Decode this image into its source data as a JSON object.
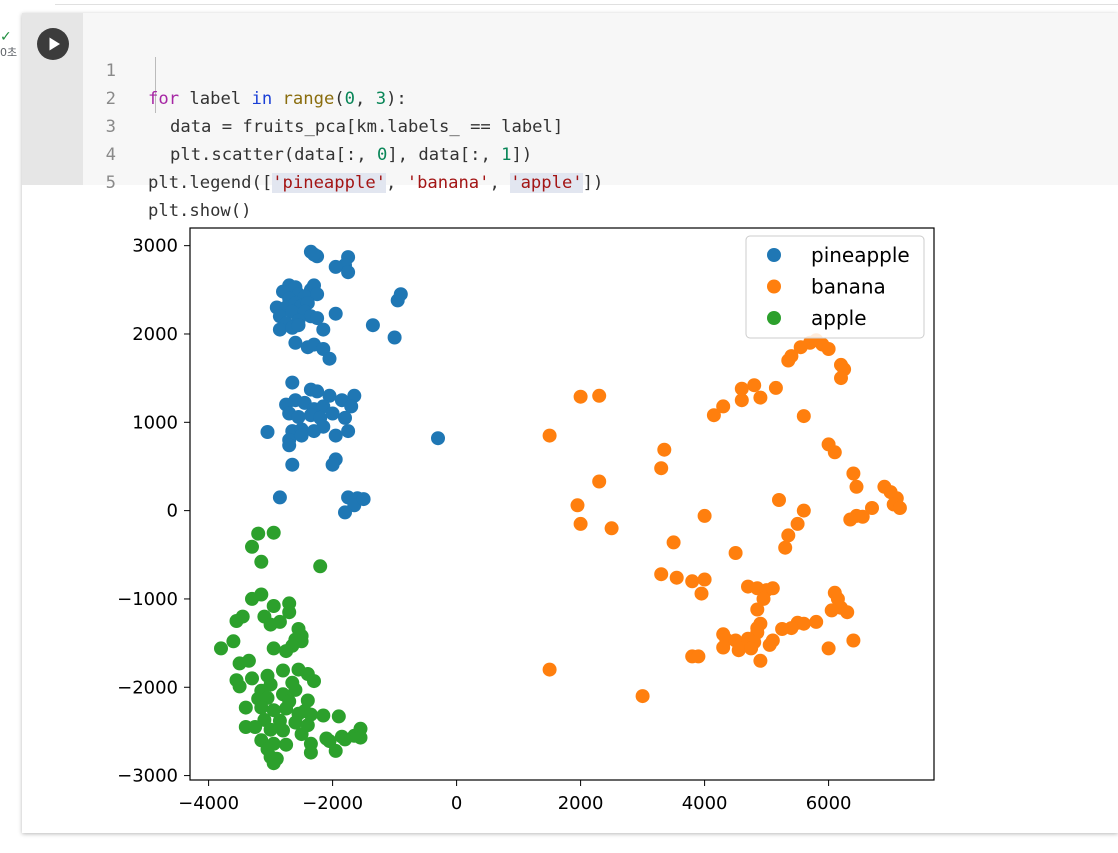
{
  "status": {
    "check": "✓",
    "exec_time": "0초"
  },
  "run_button": {
    "icon": "play-icon"
  },
  "code": {
    "line_numbers": [
      "1",
      "2",
      "3",
      "4",
      "5"
    ],
    "l1": {
      "for": "for",
      "mid": " label ",
      "in": "in",
      "sp": " ",
      "range": "range",
      "p1": "(",
      "n0": "0",
      "comma": ", ",
      "n3": "3",
      "tail": "):"
    },
    "l2": {
      "a": "data = fruits_pca[km.labels_ == label]"
    },
    "l3": {
      "a": "plt.scatter(data[:, ",
      "n0": "0",
      "b": "], data[:, ",
      "n1": "1",
      "c": "])"
    },
    "l4": {
      "a": "plt.legend([",
      "s1": "'pineapple'",
      "c1": ", ",
      "s2": "'banana'",
      "c2": ", ",
      "s3": "'apple'",
      "d": "])"
    },
    "l5": {
      "a": "plt.show()"
    }
  },
  "chart_data": {
    "type": "scatter",
    "xlim": [
      -4300,
      7700
    ],
    "ylim": [
      -3050,
      3200
    ],
    "xticks": [
      -4000,
      -2000,
      0,
      2000,
      4000,
      6000
    ],
    "yticks": [
      3000,
      2000,
      1000,
      0,
      -1000,
      -2000,
      -3000
    ],
    "xtick_labels": [
      "−4000",
      "−2000",
      "0",
      "2000",
      "4000",
      "6000"
    ],
    "ytick_labels": [
      "3000",
      "2000",
      "1000",
      "0",
      "−1000",
      "−2000",
      "−3000"
    ],
    "grid": false,
    "legend_position": "upper right",
    "series": [
      {
        "name": "pineapple",
        "color": "#1f77b4",
        "points": [
          [
            -2350,
            2930
          ],
          [
            -2250,
            2880
          ],
          [
            -2300,
            2900
          ],
          [
            -1750,
            2870
          ],
          [
            -1800,
            2780
          ],
          [
            -1950,
            2760
          ],
          [
            -1750,
            2700
          ],
          [
            -2700,
            2550
          ],
          [
            -2600,
            2530
          ],
          [
            -2350,
            2500
          ],
          [
            -2300,
            2550
          ],
          [
            -2800,
            2480
          ],
          [
            -2550,
            2450
          ],
          [
            -2700,
            2400
          ],
          [
            -2450,
            2420
          ],
          [
            -2250,
            2450
          ],
          [
            -2900,
            2300
          ],
          [
            -2750,
            2300
          ],
          [
            -2600,
            2350
          ],
          [
            -2500,
            2320
          ],
          [
            -2400,
            2350
          ],
          [
            -2850,
            2200
          ],
          [
            -2650,
            2250
          ],
          [
            -2450,
            2250
          ],
          [
            -2350,
            2200
          ],
          [
            -2750,
            2120
          ],
          [
            -2550,
            2150
          ],
          [
            -2250,
            2180
          ],
          [
            -2850,
            2050
          ],
          [
            -2650,
            2070
          ],
          [
            -2550,
            2100
          ],
          [
            -2150,
            2050
          ],
          [
            -1950,
            2230
          ],
          [
            -1350,
            2100
          ],
          [
            -950,
            2380
          ],
          [
            -900,
            2450
          ],
          [
            -1000,
            1960
          ],
          [
            -2600,
            1900
          ],
          [
            -2400,
            1850
          ],
          [
            -2300,
            1880
          ],
          [
            -2150,
            1830
          ],
          [
            -2050,
            1720
          ],
          [
            -2650,
            1450
          ],
          [
            -2350,
            1370
          ],
          [
            -2250,
            1350
          ],
          [
            -2050,
            1300
          ],
          [
            -1650,
            1300
          ],
          [
            -2600,
            1250
          ],
          [
            -2450,
            1220
          ],
          [
            -2750,
            1200
          ],
          [
            -2300,
            1150
          ],
          [
            -2150,
            1180
          ],
          [
            -1850,
            1250
          ],
          [
            -1700,
            1180
          ],
          [
            -2700,
            1100
          ],
          [
            -2550,
            1060
          ],
          [
            -2350,
            1080
          ],
          [
            -2200,
            1050
          ],
          [
            -2000,
            1100
          ],
          [
            -2150,
            950
          ],
          [
            -1800,
            1050
          ],
          [
            -1750,
            900
          ],
          [
            -2650,
            900
          ],
          [
            -2500,
            920
          ],
          [
            -2300,
            900
          ],
          [
            -3050,
            890
          ],
          [
            -2700,
            800
          ],
          [
            -2500,
            850
          ],
          [
            -1950,
            850
          ],
          [
            -2700,
            740
          ],
          [
            -1950,
            580
          ],
          [
            -2000,
            520
          ],
          [
            -2650,
            520
          ],
          [
            -300,
            820
          ],
          [
            -1750,
            150
          ],
          [
            -1600,
            140
          ],
          [
            -1650,
            60
          ],
          [
            -1800,
            -20
          ],
          [
            -2850,
            150
          ],
          [
            -1500,
            130
          ]
        ]
      },
      {
        "name": "banana",
        "color": "#ff7f0e",
        "points": [
          [
            5700,
            1900
          ],
          [
            5800,
            1930
          ],
          [
            5900,
            1880
          ],
          [
            5550,
            1850
          ],
          [
            6000,
            1830
          ],
          [
            5400,
            1750
          ],
          [
            5350,
            1700
          ],
          [
            6200,
            1650
          ],
          [
            6250,
            1600
          ],
          [
            6200,
            1500
          ],
          [
            4800,
            1420
          ],
          [
            4600,
            1380
          ],
          [
            5150,
            1390
          ],
          [
            4900,
            1280
          ],
          [
            4600,
            1250
          ],
          [
            4300,
            1180
          ],
          [
            4150,
            1080
          ],
          [
            5600,
            1070
          ],
          [
            2000,
            1290
          ],
          [
            2300,
            1300
          ],
          [
            1500,
            850
          ],
          [
            6000,
            750
          ],
          [
            6100,
            660
          ],
          [
            3350,
            690
          ],
          [
            3300,
            480
          ],
          [
            2300,
            330
          ],
          [
            6400,
            420
          ],
          [
            6450,
            270
          ],
          [
            6900,
            270
          ],
          [
            7000,
            210
          ],
          [
            7100,
            140
          ],
          [
            7050,
            70
          ],
          [
            7150,
            30
          ],
          [
            6700,
            30
          ],
          [
            5200,
            120
          ],
          [
            5600,
            0
          ],
          [
            5500,
            -150
          ],
          [
            4000,
            -60
          ],
          [
            6450,
            -60
          ],
          [
            6550,
            -70
          ],
          [
            6350,
            -100
          ],
          [
            1950,
            60
          ],
          [
            2000,
            -150
          ],
          [
            2500,
            -200
          ],
          [
            5350,
            -280
          ],
          [
            5300,
            -420
          ],
          [
            3500,
            -360
          ],
          [
            4500,
            -480
          ],
          [
            3300,
            -720
          ],
          [
            3550,
            -760
          ],
          [
            3800,
            -800
          ],
          [
            4000,
            -780
          ],
          [
            3950,
            -940
          ],
          [
            4700,
            -860
          ],
          [
            4850,
            -880
          ],
          [
            5000,
            -900
          ],
          [
            5100,
            -880
          ],
          [
            4950,
            -1000
          ],
          [
            4850,
            -1120
          ],
          [
            6100,
            -930
          ],
          [
            6150,
            -1000
          ],
          [
            6200,
            -1100
          ],
          [
            6050,
            -1130
          ],
          [
            6300,
            -1150
          ],
          [
            5500,
            -1270
          ],
          [
            5600,
            -1280
          ],
          [
            5800,
            -1260
          ],
          [
            5400,
            -1330
          ],
          [
            5250,
            -1340
          ],
          [
            4900,
            -1280
          ],
          [
            4850,
            -1330
          ],
          [
            4850,
            -1380
          ],
          [
            4300,
            -1400
          ],
          [
            4350,
            -1460
          ],
          [
            4500,
            -1470
          ],
          [
            4600,
            -1510
          ],
          [
            4700,
            -1450
          ],
          [
            4800,
            -1490
          ],
          [
            4300,
            -1550
          ],
          [
            4550,
            -1580
          ],
          [
            4750,
            -1560
          ],
          [
            5100,
            -1470
          ],
          [
            5050,
            -1520
          ],
          [
            6000,
            -1560
          ],
          [
            6400,
            -1470
          ],
          [
            3800,
            -1650
          ],
          [
            3900,
            -1650
          ],
          [
            4900,
            -1700
          ],
          [
            1500,
            -1800
          ],
          [
            3000,
            -2100
          ]
        ]
      },
      {
        "name": "apple",
        "color": "#2ca02c",
        "points": [
          [
            -3200,
            -260
          ],
          [
            -2950,
            -250
          ],
          [
            -3300,
            -410
          ],
          [
            -3150,
            -580
          ],
          [
            -2200,
            -630
          ],
          [
            -3300,
            -1000
          ],
          [
            -3150,
            -950
          ],
          [
            -2950,
            -1080
          ],
          [
            -2700,
            -1050
          ],
          [
            -3450,
            -1200
          ],
          [
            -3550,
            -1250
          ],
          [
            -2700,
            -1150
          ],
          [
            -3100,
            -1200
          ],
          [
            -3000,
            -1290
          ],
          [
            -2850,
            -1260
          ],
          [
            -2550,
            -1340
          ],
          [
            -2500,
            -1420
          ],
          [
            -2600,
            -1460
          ],
          [
            -2500,
            -1480
          ],
          [
            -3600,
            -1480
          ],
          [
            -3800,
            -1560
          ],
          [
            -2950,
            -1560
          ],
          [
            -2650,
            -1530
          ],
          [
            -2750,
            -1590
          ],
          [
            -3350,
            -1700
          ],
          [
            -3500,
            -1730
          ],
          [
            -2800,
            -1810
          ],
          [
            -2550,
            -1800
          ],
          [
            -3050,
            -1870
          ],
          [
            -2400,
            -1850
          ],
          [
            -3300,
            -1900
          ],
          [
            -3550,
            -1920
          ],
          [
            -3500,
            -1990
          ],
          [
            -2650,
            -1950
          ],
          [
            -3000,
            -1970
          ],
          [
            -2300,
            -1930
          ],
          [
            -3150,
            -2040
          ],
          [
            -2600,
            -2030
          ],
          [
            -2800,
            -2080
          ],
          [
            -3200,
            -2130
          ],
          [
            -3050,
            -2120
          ],
          [
            -2400,
            -2150
          ],
          [
            -2700,
            -2160
          ],
          [
            -3400,
            -2230
          ],
          [
            -3150,
            -2230
          ],
          [
            -2950,
            -2260
          ],
          [
            -2750,
            -2240
          ],
          [
            -2450,
            -2270
          ],
          [
            -2550,
            -2300
          ],
          [
            -2350,
            -2310
          ],
          [
            -2150,
            -2320
          ],
          [
            -1900,
            -2330
          ],
          [
            -3100,
            -2370
          ],
          [
            -2850,
            -2380
          ],
          [
            -2600,
            -2400
          ],
          [
            -2400,
            -2430
          ],
          [
            -3400,
            -2450
          ],
          [
            -3250,
            -2450
          ],
          [
            -3000,
            -2480
          ],
          [
            -2800,
            -2490
          ],
          [
            -2500,
            -2530
          ],
          [
            -1850,
            -2560
          ],
          [
            -1650,
            -2550
          ],
          [
            -1550,
            -2470
          ],
          [
            -1800,
            -2590
          ],
          [
            -1550,
            -2570
          ],
          [
            -2100,
            -2580
          ],
          [
            -3150,
            -2600
          ],
          [
            -2950,
            -2640
          ],
          [
            -2750,
            -2650
          ],
          [
            -2350,
            -2640
          ],
          [
            -2050,
            -2610
          ],
          [
            -3050,
            -2700
          ],
          [
            -2350,
            -2740
          ],
          [
            -1950,
            -2720
          ],
          [
            -3000,
            -2790
          ],
          [
            -2900,
            -2810
          ],
          [
            -2950,
            -2860
          ]
        ]
      }
    ]
  }
}
